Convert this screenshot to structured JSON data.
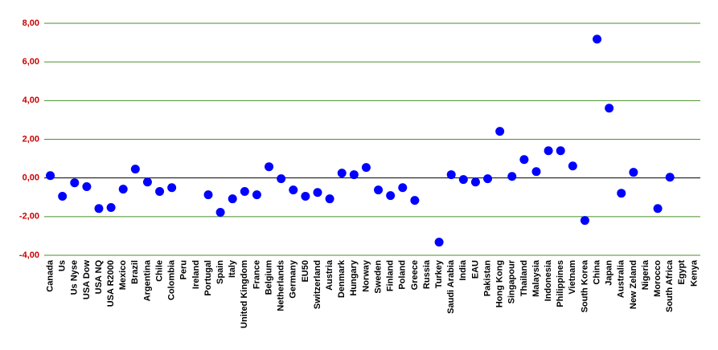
{
  "chart_data": {
    "type": "scatter",
    "categories": [
      "Canada",
      "Us",
      "Us Nyse",
      "USA Dow",
      "USA NQ",
      "USA R2000",
      "Mexico",
      "Brazil",
      "Argentina",
      "Chile",
      "Colombia",
      "Peru",
      "Ireland",
      "Portugal",
      "Spain",
      "Italy",
      "United Kingdom",
      "France",
      "Belgium",
      "Netherlands",
      "Germany",
      "EU50",
      "Switzerland",
      "Austria",
      "Denmark",
      "Hungary",
      "Norway",
      "Sweden",
      "Finland",
      "Poland",
      "Greece",
      "Russia",
      "Turkey",
      "Saudi Arabia",
      "India",
      "EAU",
      "Pakistan",
      "Hong Kong",
      "Singapour",
      "Thailand",
      "Malaysia",
      "Indonesia",
      "Philippines",
      "Vietnam",
      "South Korea",
      "China",
      "Japan",
      "Australia",
      "New Zeland",
      "Nigeria",
      "Morocco",
      "South Africa",
      "Egypt",
      "Kenya"
    ],
    "values": [
      0.12,
      -0.95,
      -0.25,
      -0.45,
      -1.58,
      -1.53,
      -0.58,
      0.46,
      -0.21,
      -0.7,
      -0.5,
      null,
      null,
      -0.87,
      -1.78,
      -1.08,
      -0.7,
      -0.87,
      0.58,
      -0.04,
      -0.62,
      -0.95,
      -0.75,
      -1.08,
      0.25,
      0.17,
      0.54,
      -0.62,
      -0.91,
      -0.5,
      -1.16,
      null,
      -3.32,
      0.17,
      -0.08,
      -0.21,
      -0.04,
      2.41,
      0.08,
      0.95,
      0.33,
      1.41,
      1.41,
      0.62,
      -2.2,
      7.18,
      3.61,
      -0.79,
      0.29,
      null,
      -1.58,
      0.04,
      null,
      null
    ],
    "color": "#0000ff",
    "ylim": [
      -4,
      8
    ],
    "yticks": [
      {
        "value": -4,
        "label": "-4,00"
      },
      {
        "value": -2,
        "label": "-2,00"
      },
      {
        "value": 0,
        "label": "0,00"
      },
      {
        "value": 2,
        "label": "2,00"
      },
      {
        "value": 4,
        "label": "4,00"
      },
      {
        "value": 6,
        "label": "6,00"
      },
      {
        "value": 8,
        "label": "8,00"
      }
    ],
    "grid": true,
    "grid_color": "#4a8f2a",
    "tick_label_color": "#cc0000"
  }
}
